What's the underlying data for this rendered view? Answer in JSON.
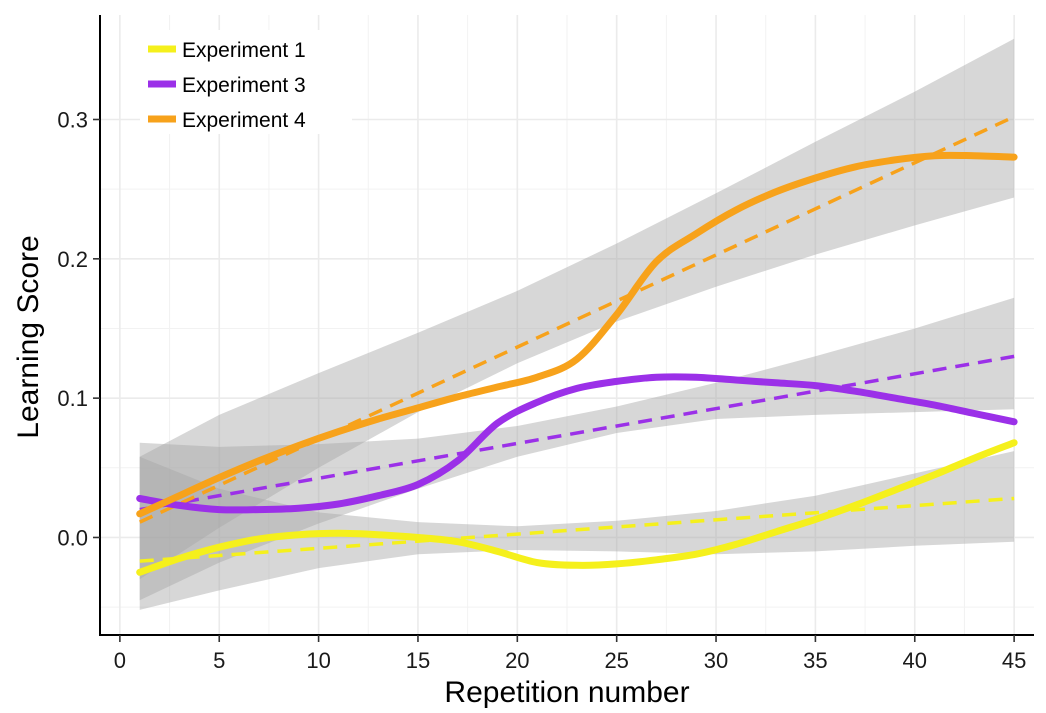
{
  "chart_data": {
    "type": "line",
    "xlabel": "Repetition number",
    "ylabel": "Learning Score",
    "xlim": [
      -1.0,
      46.0
    ],
    "ylim": [
      -0.07,
      0.375
    ],
    "xticks": [
      0,
      5,
      10,
      15,
      20,
      25,
      30,
      35,
      40,
      45
    ],
    "yticks": [
      0.0,
      0.1,
      0.2,
      0.3
    ],
    "xtick_labels": [
      "0",
      "5",
      "10",
      "15",
      "20",
      "25",
      "30",
      "35",
      "40",
      "45"
    ],
    "ytick_labels": [
      "0.0",
      "0.1",
      "0.2",
      "0.3"
    ],
    "grid": true,
    "legend_position": "top-left",
    "series": [
      {
        "name": "Experiment 1",
        "color": "#f5f01c",
        "smooth": {
          "x": [
            1,
            3,
            5,
            7,
            9,
            11,
            13,
            15,
            17,
            19,
            21,
            23,
            25,
            27,
            29,
            31,
            33,
            35,
            37,
            39,
            41,
            43,
            45
          ],
          "y": [
            -0.025,
            -0.015,
            -0.007,
            -0.001,
            0.002,
            0.003,
            0.002,
            0.0,
            -0.003,
            -0.01,
            -0.018,
            -0.02,
            -0.019,
            -0.016,
            -0.012,
            -0.005,
            0.004,
            0.013,
            0.023,
            0.034,
            0.045,
            0.057,
            0.068
          ]
        },
        "trend": {
          "x": [
            1,
            45
          ],
          "y": [
            -0.017,
            0.028
          ]
        },
        "band": {
          "x": [
            1,
            5,
            10,
            15,
            20,
            25,
            30,
            35,
            40,
            45
          ],
          "lower": [
            -0.052,
            -0.038,
            -0.022,
            -0.012,
            -0.009,
            -0.01,
            -0.012,
            -0.01,
            -0.006,
            -0.003
          ],
          "upper": [
            0.058,
            0.035,
            0.018,
            0.011,
            0.008,
            0.012,
            0.019,
            0.03,
            0.046,
            0.062
          ]
        }
      },
      {
        "name": "Experiment 3",
        "color": "#9b30e8",
        "smooth": {
          "x": [
            1,
            3,
            5,
            7,
            9,
            11,
            13,
            15,
            17,
            19,
            21,
            23,
            25,
            27,
            29,
            31,
            33,
            35,
            37,
            39,
            41,
            43,
            45
          ],
          "y": [
            0.028,
            0.023,
            0.02,
            0.02,
            0.021,
            0.024,
            0.03,
            0.038,
            0.055,
            0.082,
            0.097,
            0.107,
            0.112,
            0.115,
            0.115,
            0.113,
            0.111,
            0.109,
            0.105,
            0.1,
            0.095,
            0.089,
            0.083
          ]
        },
        "trend": {
          "x": [
            1,
            45
          ],
          "y": [
            0.02,
            0.13
          ]
        },
        "band": {
          "x": [
            1,
            5,
            10,
            15,
            20,
            25,
            30,
            35,
            40,
            45
          ],
          "lower": [
            -0.045,
            -0.018,
            0.01,
            0.035,
            0.058,
            0.075,
            0.085,
            0.088,
            0.09,
            0.092
          ],
          "upper": [
            0.068,
            0.065,
            0.067,
            0.071,
            0.08,
            0.094,
            0.111,
            0.13,
            0.15,
            0.172
          ]
        }
      },
      {
        "name": "Experiment 4",
        "color": "#f7a21b",
        "smooth": {
          "x": [
            1,
            3,
            5,
            7,
            9,
            11,
            13,
            15,
            17,
            19,
            21,
            23,
            25,
            27,
            29,
            31,
            33,
            35,
            37,
            39,
            41,
            43,
            45
          ],
          "y": [
            0.017,
            0.03,
            0.043,
            0.055,
            0.066,
            0.076,
            0.085,
            0.093,
            0.101,
            0.108,
            0.115,
            0.128,
            0.16,
            0.198,
            0.218,
            0.235,
            0.248,
            0.258,
            0.266,
            0.271,
            0.274,
            0.274,
            0.273
          ]
        },
        "trend": {
          "x": [
            1,
            45
          ],
          "y": [
            0.011,
            0.302
          ]
        },
        "band": {
          "x": [
            1,
            5,
            10,
            15,
            20,
            25,
            30,
            35,
            40,
            45
          ],
          "lower": [
            -0.03,
            0.007,
            0.05,
            0.09,
            0.125,
            0.155,
            0.18,
            0.203,
            0.224,
            0.244
          ],
          "upper": [
            0.058,
            0.088,
            0.118,
            0.147,
            0.177,
            0.211,
            0.247,
            0.284,
            0.32,
            0.358
          ]
        }
      }
    ]
  }
}
